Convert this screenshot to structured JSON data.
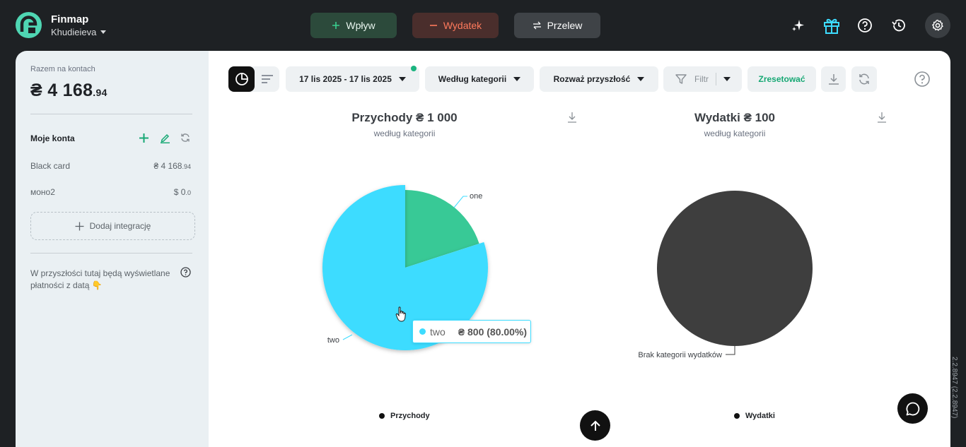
{
  "header": {
    "brand": "Finmap",
    "user": "Khudieieva",
    "actions": {
      "inflow": "Wpływ",
      "outflow": "Wydatek",
      "transfer": "Przelew"
    },
    "icons": [
      "sparkle-icon",
      "gift-icon",
      "help-icon",
      "history-icon",
      "settings-icon"
    ]
  },
  "sidebar": {
    "total_label": "Razem na kontach",
    "total_main": "₴ 4 168",
    "total_decimal": ".94",
    "accounts_title": "Moje konta",
    "accounts": [
      {
        "name": "Black card",
        "balance_main": "₴ 4 168",
        "balance_decimal": ".94"
      },
      {
        "name": "моно2",
        "balance_main": "$ 0",
        "balance_decimal": ".0"
      }
    ],
    "add_integration": "Dodaj integrację",
    "future_note": "W przyszłości tutaj będą wyświetlane płatności z datą 👇"
  },
  "toolbar": {
    "date_range": "17 lis 2025 - 17 lis 2025",
    "group_by": "Według kategorii",
    "future": "Rozważ przyszłość",
    "filter": "Filtr",
    "reset": "Zresetować"
  },
  "charts": {
    "income": {
      "title": "Przychody ₴ 1 000",
      "subtitle": "według kategorii",
      "legend": "Przychody",
      "labels": {
        "one": "one",
        "two": "two"
      },
      "tooltip": {
        "name": "two",
        "value": "₴ 800 (80.00%)"
      }
    },
    "expenses": {
      "title": "Wydatki ₴ 100",
      "subtitle": "według kategorii",
      "legend": "Wydatki",
      "label": "Brak kategorii wydatków"
    }
  },
  "chart_data": [
    {
      "type": "pie",
      "title": "Przychody ₴ 1 000",
      "subtitle": "według kategorii",
      "categories": [
        "one",
        "two"
      ],
      "values": [
        200,
        800
      ],
      "colors": [
        "#38c996",
        "#3ddcff"
      ]
    },
    {
      "type": "pie",
      "title": "Wydatki ₴ 100",
      "subtitle": "według kategorii",
      "categories": [
        "Brak kategorii wydatków"
      ],
      "values": [
        100
      ],
      "colors": [
        "#3e3e3e"
      ]
    }
  ],
  "version": "2.2.8947 (2.2.8947)",
  "colors": {
    "accent": "#17a874",
    "income_one": "#38c996",
    "income_two": "#3ddcff",
    "expense": "#3e3e3e"
  }
}
